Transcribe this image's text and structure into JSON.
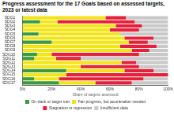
{
  "chart_data": {
    "type": "bar",
    "title": "Progress assessment for the 17 Goals based on assessed targets, 2023 or latest data",
    "x_label": "Share of targets assessed",
    "orientation": "horizontal",
    "stacked": true,
    "grid": false,
    "legend": "bottom",
    "categories": [
      "SDG1",
      "SDG2",
      "SDG3",
      "SDG4",
      "SDG5",
      "SDG6",
      "SDG7",
      "SDG8",
      "SDG9",
      "SDG10",
      "SDG11",
      "SDG12",
      "SDG13",
      "SDG14",
      "SDG15",
      "SDG16",
      "SDG17"
    ],
    "series": [
      {
        "name": "On track or target met",
        "color": "#3b9a3b",
        "values": [
          0,
          12,
          0,
          0,
          11,
          0,
          20,
          0,
          0,
          10,
          8,
          0,
          0,
          30,
          0,
          8,
          25
        ]
      },
      {
        "name": "Fair progress, but acceleration needed",
        "color": "#f3e514",
        "values": [
          57,
          12,
          64,
          60,
          56,
          70,
          53,
          67,
          75,
          10,
          15,
          68,
          40,
          40,
          30,
          17,
          25
        ]
      },
      {
        "name": "Stagnation or regression",
        "color": "#e5203a",
        "values": [
          14,
          53,
          18,
          20,
          0,
          20,
          13,
          25,
          12,
          60,
          17,
          10,
          40,
          20,
          70,
          58,
          25
        ]
      },
      {
        "name": "Insufficient data",
        "color": "#c8c8c8",
        "values": [
          29,
          23,
          18,
          20,
          33,
          10,
          14,
          8,
          13,
          20,
          60,
          22,
          20,
          10,
          0,
          17,
          25
        ]
      }
    ],
    "xlim": [
      0,
      100
    ],
    "xticks": [
      {
        "value": 0,
        "label": "0%"
      },
      {
        "value": 20,
        "label": "20%"
      },
      {
        "value": 40,
        "label": "40%"
      },
      {
        "value": 60,
        "label": "60%"
      },
      {
        "value": 80,
        "label": "80%"
      },
      {
        "value": 100,
        "label": "100%"
      }
    ]
  }
}
